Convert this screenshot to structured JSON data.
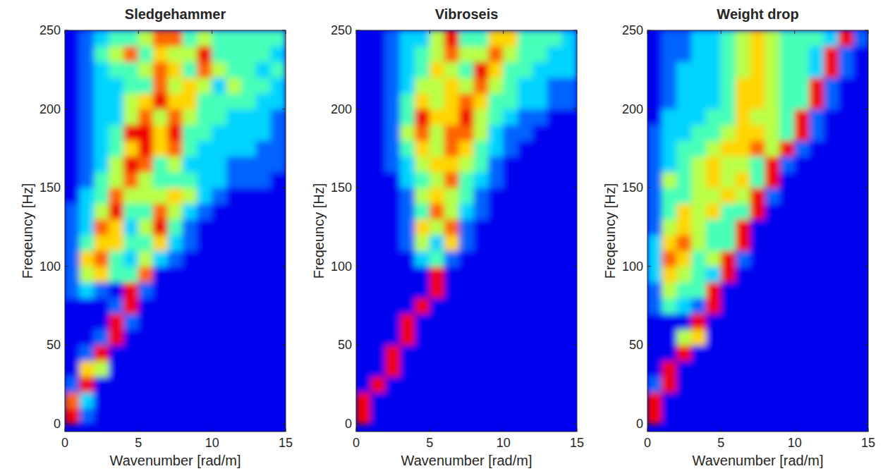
{
  "chart_data": [
    {
      "type": "heatmap",
      "title": "Sledgehammer",
      "xlabel": "Wavenumber [rad/m]",
      "ylabel": "Freqeuncy [Hz]",
      "xlim": [
        0,
        15
      ],
      "ylim": [
        -5,
        250
      ],
      "xticks": [
        0,
        5,
        10,
        15
      ],
      "yticks": [
        0,
        50,
        100,
        150,
        200,
        250
      ],
      "zlim": [
        0,
        9
      ],
      "x": [
        0.5,
        1.5,
        2.5,
        3.5,
        4.5,
        5.5,
        6.5,
        7.5,
        8.5,
        9.5,
        10.5,
        11.5,
        12.5,
        13.5,
        14.5
      ],
      "y": [
        5,
        15,
        25,
        35,
        45,
        55,
        65,
        75,
        85,
        95,
        105,
        115,
        125,
        135,
        145,
        155,
        165,
        175,
        185,
        195,
        205,
        215,
        225,
        235,
        245
      ],
      "z": [
        [
          8,
          2,
          1,
          1,
          1,
          1,
          1,
          1,
          1,
          1,
          1,
          1,
          1,
          1,
          1
        ],
        [
          7,
          3,
          1,
          1,
          1,
          1,
          1,
          1,
          1,
          1,
          1,
          1,
          1,
          1,
          1
        ],
        [
          2,
          8,
          1,
          1,
          1,
          1,
          1,
          1,
          1,
          1,
          1,
          1,
          1,
          1,
          1
        ],
        [
          1,
          6,
          5,
          1,
          1,
          1,
          1,
          1,
          1,
          1,
          1,
          1,
          1,
          1,
          1
        ],
        [
          1,
          2,
          8,
          1,
          1,
          1,
          1,
          1,
          1,
          1,
          1,
          1,
          1,
          1,
          1
        ],
        [
          1,
          1,
          2,
          8,
          1,
          1,
          1,
          1,
          1,
          1,
          1,
          1,
          1,
          1,
          1
        ],
        [
          1,
          1,
          1,
          8,
          2,
          1,
          1,
          1,
          1,
          1,
          1,
          1,
          1,
          1,
          1
        ],
        [
          1,
          1,
          1,
          2,
          8,
          1,
          1,
          1,
          1,
          1,
          1,
          1,
          1,
          1,
          1
        ],
        [
          2,
          3,
          2,
          1,
          8,
          2,
          1,
          1,
          1,
          1,
          1,
          1,
          1,
          1,
          1
        ],
        [
          2,
          5,
          6,
          4,
          4,
          7,
          1,
          1,
          1,
          1,
          1,
          1,
          1,
          1,
          1
        ],
        [
          2,
          6,
          7,
          4,
          3,
          5,
          3,
          2,
          1,
          1,
          1,
          1,
          1,
          1,
          1
        ],
        [
          2,
          4,
          6,
          6,
          4,
          4,
          6,
          3,
          2,
          1,
          1,
          1,
          1,
          1,
          1
        ],
        [
          2,
          3,
          7,
          6,
          3,
          5,
          8,
          4,
          2,
          1,
          1,
          1,
          1,
          1,
          1
        ],
        [
          2,
          3,
          5,
          8,
          4,
          4,
          7,
          5,
          3,
          2,
          1,
          1,
          1,
          1,
          1
        ],
        [
          1,
          3,
          4,
          7,
          5,
          5,
          5,
          6,
          5,
          3,
          2,
          1,
          1,
          1,
          1
        ],
        [
          1,
          2,
          4,
          5,
          7,
          5,
          4,
          4,
          4,
          3,
          3,
          2,
          2,
          2,
          1
        ],
        [
          1,
          2,
          3,
          5,
          8,
          7,
          4,
          5,
          3,
          3,
          3,
          2,
          2,
          2,
          2
        ],
        [
          1,
          2,
          3,
          4,
          6,
          8,
          6,
          7,
          4,
          3,
          3,
          3,
          3,
          2,
          2
        ],
        [
          1,
          2,
          3,
          4,
          8,
          8,
          6,
          8,
          4,
          4,
          3,
          3,
          3,
          3,
          2
        ],
        [
          1,
          2,
          3,
          3,
          5,
          7,
          5,
          7,
          5,
          4,
          4,
          3,
          3,
          3,
          2
        ],
        [
          1,
          2,
          3,
          3,
          5,
          6,
          8,
          6,
          6,
          4,
          4,
          4,
          4,
          3,
          3
        ],
        [
          1,
          2,
          3,
          3,
          4,
          4,
          7,
          5,
          6,
          5,
          3,
          5,
          4,
          4,
          3
        ],
        [
          1,
          2,
          3,
          4,
          4,
          5,
          7,
          6,
          4,
          7,
          5,
          4,
          4,
          3,
          4
        ],
        [
          1,
          2,
          4,
          5,
          7,
          4,
          6,
          5,
          5,
          8,
          4,
          4,
          4,
          4,
          3
        ],
        [
          1,
          2,
          3,
          4,
          4,
          5,
          7,
          7,
          4,
          5,
          4,
          4,
          4,
          4,
          4
        ]
      ]
    },
    {
      "type": "heatmap",
      "title": "Vibroseis",
      "xlabel": "Wavenumber [rad/m]",
      "ylabel": "Freqeuncy [Hz]",
      "xlim": [
        0,
        15
      ],
      "ylim": [
        -5,
        250
      ],
      "xticks": [
        0,
        5,
        10,
        15
      ],
      "yticks": [
        0,
        50,
        100,
        150,
        200,
        250
      ],
      "zlim": [
        0,
        9
      ],
      "x": [
        0.5,
        1.5,
        2.5,
        3.5,
        4.5,
        5.5,
        6.5,
        7.5,
        8.5,
        9.5,
        10.5,
        11.5,
        12.5,
        13.5,
        14.5
      ],
      "y": [
        5,
        15,
        25,
        35,
        45,
        55,
        65,
        75,
        85,
        95,
        105,
        115,
        125,
        135,
        145,
        155,
        165,
        175,
        185,
        195,
        205,
        215,
        225,
        235,
        245
      ],
      "z": [
        [
          8,
          1,
          1,
          1,
          1,
          1,
          1,
          1,
          1,
          1,
          1,
          1,
          1,
          1,
          1
        ],
        [
          8,
          1,
          1,
          1,
          1,
          1,
          1,
          1,
          1,
          1,
          1,
          1,
          1,
          1,
          1
        ],
        [
          1,
          8,
          1,
          1,
          1,
          1,
          1,
          1,
          1,
          1,
          1,
          1,
          1,
          1,
          1
        ],
        [
          1,
          1,
          8,
          1,
          1,
          1,
          1,
          1,
          1,
          1,
          1,
          1,
          1,
          1,
          1
        ],
        [
          1,
          1,
          8,
          1,
          1,
          1,
          1,
          1,
          1,
          1,
          1,
          1,
          1,
          1,
          1
        ],
        [
          1,
          1,
          1,
          8,
          1,
          1,
          1,
          1,
          1,
          1,
          1,
          1,
          1,
          1,
          1
        ],
        [
          1,
          1,
          1,
          8,
          1,
          1,
          1,
          1,
          1,
          1,
          1,
          1,
          1,
          1,
          1
        ],
        [
          1,
          1,
          1,
          1,
          8,
          1,
          1,
          1,
          1,
          1,
          1,
          1,
          1,
          1,
          1
        ],
        [
          1,
          1,
          1,
          1,
          1,
          8,
          1,
          1,
          1,
          1,
          1,
          1,
          1,
          1,
          1
        ],
        [
          1,
          1,
          1,
          1,
          1,
          8,
          1,
          1,
          1,
          1,
          1,
          1,
          1,
          1,
          1
        ],
        [
          1,
          1,
          1,
          1,
          3,
          4,
          2,
          1,
          1,
          1,
          1,
          1,
          1,
          1,
          1
        ],
        [
          1,
          1,
          1,
          2,
          5,
          3,
          6,
          2,
          1,
          1,
          1,
          1,
          1,
          1,
          1
        ],
        [
          1,
          1,
          1,
          2,
          6,
          5,
          7,
          2,
          1,
          1,
          1,
          1,
          1,
          1,
          1
        ],
        [
          1,
          1,
          1,
          2,
          4,
          7,
          5,
          3,
          2,
          1,
          1,
          1,
          1,
          1,
          1
        ],
        [
          1,
          1,
          1,
          2,
          5,
          6,
          5,
          4,
          2,
          1,
          1,
          1,
          1,
          1,
          1
        ],
        [
          1,
          1,
          1,
          3,
          4,
          5,
          7,
          4,
          3,
          2,
          1,
          1,
          1,
          1,
          1
        ],
        [
          1,
          1,
          2,
          3,
          5,
          6,
          6,
          5,
          4,
          2,
          1,
          1,
          1,
          1,
          1
        ],
        [
          1,
          1,
          2,
          4,
          6,
          5,
          7,
          6,
          4,
          3,
          2,
          1,
          1,
          1,
          1
        ],
        [
          1,
          1,
          2,
          5,
          7,
          5,
          7,
          7,
          5,
          3,
          2,
          2,
          1,
          1,
          1
        ],
        [
          1,
          1,
          2,
          4,
          8,
          6,
          6,
          8,
          5,
          4,
          3,
          2,
          2,
          1,
          1
        ],
        [
          1,
          1,
          2,
          4,
          6,
          5,
          6,
          7,
          6,
          4,
          4,
          3,
          3,
          2,
          2
        ],
        [
          1,
          1,
          2,
          3,
          5,
          5,
          6,
          5,
          7,
          5,
          4,
          3,
          3,
          2,
          2
        ],
        [
          1,
          1,
          2,
          3,
          4,
          6,
          5,
          4,
          8,
          6,
          4,
          4,
          3,
          3,
          3
        ],
        [
          1,
          1,
          2,
          3,
          4,
          5,
          7,
          5,
          5,
          7,
          5,
          4,
          4,
          3,
          3
        ],
        [
          1,
          1,
          2,
          3,
          3,
          5,
          8,
          4,
          4,
          6,
          6,
          4,
          4,
          4,
          3
        ]
      ]
    },
    {
      "type": "heatmap",
      "title": "Weight drop",
      "xlabel": "Wavenumber [rad/m]",
      "ylabel": "Freqeuncy [Hz]",
      "xlim": [
        0,
        15
      ],
      "ylim": [
        -5,
        250
      ],
      "xticks": [
        0,
        5,
        10,
        15
      ],
      "yticks": [
        0,
        50,
        100,
        150,
        200,
        250
      ],
      "zlim": [
        0,
        9
      ],
      "x": [
        0.5,
        1.5,
        2.5,
        3.5,
        4.5,
        5.5,
        6.5,
        7.5,
        8.5,
        9.5,
        10.5,
        11.5,
        12.5,
        13.5,
        14.5
      ],
      "y": [
        5,
        15,
        25,
        35,
        45,
        55,
        65,
        75,
        85,
        95,
        105,
        115,
        125,
        135,
        145,
        155,
        165,
        175,
        185,
        195,
        205,
        215,
        225,
        235,
        245
      ],
      "z": [
        [
          8,
          1,
          1,
          1,
          1,
          1,
          1,
          1,
          1,
          1,
          1,
          1,
          1,
          1,
          1
        ],
        [
          8,
          1,
          1,
          1,
          1,
          1,
          1,
          1,
          1,
          1,
          1,
          1,
          1,
          1,
          1
        ],
        [
          2,
          8,
          1,
          1,
          1,
          1,
          1,
          1,
          1,
          1,
          1,
          1,
          1,
          1,
          1
        ],
        [
          1,
          8,
          1,
          1,
          1,
          1,
          1,
          1,
          1,
          1,
          1,
          1,
          1,
          1,
          1
        ],
        [
          1,
          1,
          8,
          1,
          1,
          1,
          1,
          1,
          1,
          1,
          1,
          1,
          1,
          1,
          1
        ],
        [
          1,
          1,
          5,
          6,
          1,
          1,
          1,
          1,
          1,
          1,
          1,
          1,
          1,
          1,
          1
        ],
        [
          1,
          1,
          1,
          8,
          1,
          1,
          1,
          1,
          1,
          1,
          1,
          1,
          1,
          1,
          1
        ],
        [
          2,
          4,
          3,
          2,
          8,
          1,
          1,
          1,
          1,
          1,
          1,
          1,
          1,
          1,
          1
        ],
        [
          2,
          5,
          4,
          4,
          8,
          1,
          1,
          1,
          1,
          1,
          1,
          1,
          1,
          1,
          1
        ],
        [
          3,
          6,
          5,
          4,
          3,
          8,
          1,
          1,
          1,
          1,
          1,
          1,
          1,
          1,
          1
        ],
        [
          3,
          7,
          6,
          4,
          5,
          8,
          2,
          1,
          1,
          1,
          1,
          1,
          1,
          1,
          1
        ],
        [
          3,
          6,
          7,
          5,
          4,
          4,
          8,
          1,
          1,
          1,
          1,
          1,
          1,
          1,
          1
        ],
        [
          2,
          5,
          6,
          5,
          4,
          4,
          8,
          1,
          1,
          1,
          1,
          1,
          1,
          1,
          1
        ],
        [
          2,
          4,
          6,
          5,
          6,
          4,
          4,
          8,
          1,
          1,
          1,
          1,
          1,
          1,
          1
        ],
        [
          2,
          4,
          4,
          5,
          5,
          6,
          5,
          8,
          2,
          1,
          1,
          1,
          1,
          1,
          1
        ],
        [
          2,
          5,
          4,
          5,
          6,
          5,
          6,
          4,
          8,
          1,
          1,
          1,
          1,
          1,
          1
        ],
        [
          2,
          3,
          4,
          5,
          6,
          5,
          5,
          4,
          8,
          2,
          1,
          1,
          1,
          1,
          1
        ],
        [
          2,
          3,
          4,
          4,
          5,
          6,
          6,
          7,
          5,
          8,
          2,
          1,
          1,
          1,
          1
        ],
        [
          2,
          3,
          3,
          4,
          4,
          5,
          6,
          6,
          5,
          4,
          8,
          2,
          1,
          1,
          1
        ],
        [
          1,
          3,
          3,
          3,
          4,
          4,
          6,
          5,
          5,
          4,
          8,
          2,
          1,
          1,
          1
        ],
        [
          1,
          2,
          3,
          3,
          3,
          4,
          6,
          6,
          5,
          4,
          4,
          8,
          2,
          1,
          1
        ],
        [
          1,
          2,
          3,
          3,
          3,
          4,
          6,
          6,
          5,
          4,
          4,
          8,
          2,
          1,
          1
        ],
        [
          1,
          2,
          3,
          3,
          3,
          4,
          5,
          6,
          5,
          4,
          4,
          3,
          8,
          2,
          1
        ],
        [
          1,
          2,
          2,
          3,
          3,
          4,
          5,
          6,
          5,
          4,
          4,
          3,
          8,
          2,
          1
        ],
        [
          1,
          2,
          2,
          3,
          3,
          4,
          5,
          6,
          5,
          4,
          4,
          4,
          3,
          8,
          2
        ]
      ]
    }
  ]
}
